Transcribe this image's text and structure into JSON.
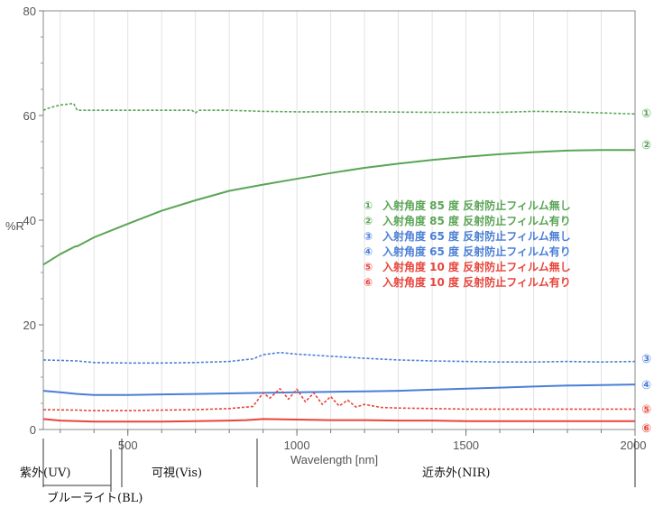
{
  "chart_data": {
    "type": "line",
    "title": "",
    "xlabel": "Wavelength [nm]",
    "ylabel": "%R",
    "xlim": [
      250,
      2000
    ],
    "ylim": [
      0,
      80
    ],
    "x_ticks": [
      {
        "value": 500,
        "label": "500"
      },
      {
        "value": 1000,
        "label": "1000"
      },
      {
        "value": 1500,
        "label": "1500"
      },
      {
        "value": 2000,
        "label": "2000"
      }
    ],
    "y_ticks": [
      {
        "value": 0,
        "label": "0"
      },
      {
        "value": 20,
        "label": "20"
      },
      {
        "value": 40,
        "label": "40"
      },
      {
        "value": 60,
        "label": "60"
      },
      {
        "value": 80,
        "label": "80"
      }
    ],
    "grid": "vertical",
    "legend_position": "center-right",
    "series": [
      {
        "marker": "①",
        "name": "入射角度 85 度 反射防止フィルム無し",
        "color": "#5aa555",
        "dash": true,
        "points": [
          [
            250,
            61
          ],
          [
            270,
            61.5
          ],
          [
            300,
            62
          ],
          [
            340,
            62.3
          ],
          [
            350,
            61
          ],
          [
            400,
            61
          ],
          [
            500,
            61
          ],
          [
            600,
            61
          ],
          [
            690,
            61
          ],
          [
            700,
            60.5
          ],
          [
            710,
            61
          ],
          [
            800,
            61
          ],
          [
            900,
            60.8
          ],
          [
            1000,
            60.7
          ],
          [
            1200,
            60.7
          ],
          [
            1400,
            60.6
          ],
          [
            1600,
            60.6
          ],
          [
            1700,
            60.8
          ],
          [
            1800,
            60.7
          ],
          [
            1900,
            60.5
          ],
          [
            2000,
            60.3
          ]
        ]
      },
      {
        "marker": "②",
        "name": "入射角度 85 度 反射防止フィルム有り",
        "color": "#5aa555",
        "dash": false,
        "points": [
          [
            250,
            31.5
          ],
          [
            300,
            33.5
          ],
          [
            345,
            35
          ],
          [
            350,
            35
          ],
          [
            400,
            36.7
          ],
          [
            500,
            39.3
          ],
          [
            600,
            41.8
          ],
          [
            700,
            43.8
          ],
          [
            800,
            45.6
          ],
          [
            900,
            46.8
          ],
          [
            1000,
            47.9
          ],
          [
            1100,
            49
          ],
          [
            1200,
            50
          ],
          [
            1300,
            50.8
          ],
          [
            1400,
            51.5
          ],
          [
            1500,
            52.1
          ],
          [
            1600,
            52.6
          ],
          [
            1700,
            53
          ],
          [
            1800,
            53.3
          ],
          [
            1900,
            53.4
          ],
          [
            2000,
            53.4
          ]
        ]
      },
      {
        "marker": "③",
        "name": "入射角度 65 度 反射防止フィルム無し",
        "color": "#4a7fd6",
        "dash": true,
        "points": [
          [
            250,
            13.3
          ],
          [
            350,
            13.1
          ],
          [
            400,
            12.8
          ],
          [
            500,
            12.7
          ],
          [
            600,
            12.7
          ],
          [
            700,
            12.8
          ],
          [
            800,
            13
          ],
          [
            870,
            13.5
          ],
          [
            900,
            14.3
          ],
          [
            950,
            14.7
          ],
          [
            1000,
            14.4
          ],
          [
            1100,
            14
          ],
          [
            1200,
            13.6
          ],
          [
            1300,
            13.3
          ],
          [
            1400,
            13.1
          ],
          [
            1500,
            13
          ],
          [
            1600,
            12.9
          ],
          [
            1700,
            12.9
          ],
          [
            1800,
            13
          ],
          [
            1900,
            12.9
          ],
          [
            2000,
            13
          ]
        ]
      },
      {
        "marker": "④",
        "name": "入射角度 65 度 反射防止フィルム有り",
        "color": "#4a7fd6",
        "dash": false,
        "points": [
          [
            250,
            7.4
          ],
          [
            300,
            7.1
          ],
          [
            350,
            6.8
          ],
          [
            400,
            6.6
          ],
          [
            500,
            6.6
          ],
          [
            600,
            6.7
          ],
          [
            700,
            6.8
          ],
          [
            800,
            6.9
          ],
          [
            900,
            7
          ],
          [
            1000,
            7.1
          ],
          [
            1100,
            7.2
          ],
          [
            1200,
            7.3
          ],
          [
            1300,
            7.4
          ],
          [
            1400,
            7.6
          ],
          [
            1500,
            7.8
          ],
          [
            1600,
            8
          ],
          [
            1700,
            8.2
          ],
          [
            1800,
            8.4
          ],
          [
            1900,
            8.5
          ],
          [
            2000,
            8.6
          ]
        ]
      },
      {
        "marker": "⑤",
        "name": "入射角度 10 度 反射防止フィルム無し",
        "color": "#e8453c",
        "dash": true,
        "points": [
          [
            250,
            3.8
          ],
          [
            350,
            3.7
          ],
          [
            400,
            3.6
          ],
          [
            500,
            3.6
          ],
          [
            600,
            3.7
          ],
          [
            700,
            3.8
          ],
          [
            800,
            4
          ],
          [
            870,
            4.4
          ],
          [
            900,
            7
          ],
          [
            920,
            6
          ],
          [
            950,
            7.8
          ],
          [
            975,
            5.8
          ],
          [
            1000,
            7.7
          ],
          [
            1025,
            5.3
          ],
          [
            1050,
            7
          ],
          [
            1075,
            4.8
          ],
          [
            1100,
            6.3
          ],
          [
            1125,
            4.5
          ],
          [
            1150,
            5.6
          ],
          [
            1175,
            4.3
          ],
          [
            1200,
            4.8
          ],
          [
            1250,
            4.2
          ],
          [
            1300,
            4.1
          ],
          [
            1400,
            4
          ],
          [
            1500,
            3.9
          ],
          [
            1600,
            3.9
          ],
          [
            1700,
            3.9
          ],
          [
            1800,
            3.9
          ],
          [
            1900,
            3.9
          ],
          [
            2000,
            3.9
          ]
        ]
      },
      {
        "marker": "⑥",
        "name": "入射角度 10 度 反射防止フィルム有り",
        "color": "#e8453c",
        "dash": false,
        "points": [
          [
            250,
            2
          ],
          [
            300,
            1.7
          ],
          [
            400,
            1.5
          ],
          [
            500,
            1.5
          ],
          [
            600,
            1.5
          ],
          [
            700,
            1.6
          ],
          [
            800,
            1.7
          ],
          [
            850,
            1.8
          ],
          [
            900,
            2
          ],
          [
            1000,
            1.9
          ],
          [
            1100,
            1.8
          ],
          [
            1200,
            1.8
          ],
          [
            1300,
            1.7
          ],
          [
            1400,
            1.7
          ],
          [
            1500,
            1.6
          ],
          [
            1600,
            1.6
          ],
          [
            1700,
            1.6
          ],
          [
            1800,
            1.6
          ],
          [
            1900,
            1.6
          ],
          [
            2000,
            1.6
          ]
        ]
      }
    ],
    "regions": [
      {
        "label": "紫外(UV)",
        "from": 250,
        "to": 380
      },
      {
        "label": "ブルーライト(BL)",
        "from": 380,
        "to": 500
      },
      {
        "label": "可視(Vis)",
        "from": 380,
        "to": 780
      },
      {
        "label": "近赤外(NIR)",
        "from": 780,
        "to": 2000
      }
    ]
  }
}
